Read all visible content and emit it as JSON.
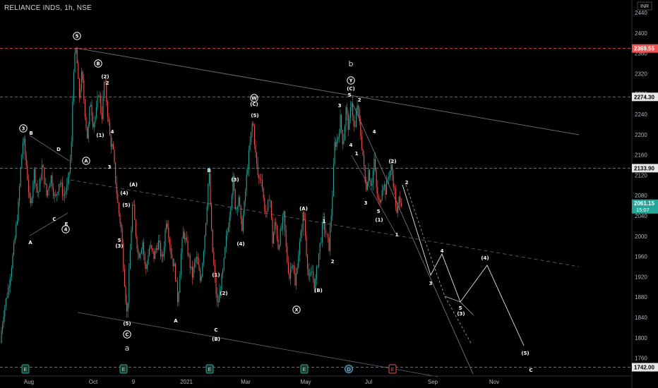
{
  "header": {
    "title": "RELIANCE INDS, 1h, NSE"
  },
  "currency": "INR",
  "colors": {
    "background": "#000000",
    "bull": "#26a69a",
    "bear": "#ef5350",
    "grid_text": "#d1d4dc",
    "current_price_bg": "#26a69a",
    "hline_red": "#ef5350",
    "hline_gray": "#787b86",
    "trendline": "#787b86"
  },
  "chart_data": {
    "type": "candlestick",
    "title": "RELIANCE INDS, 1h, NSE",
    "ylim": [
      1730,
      2450
    ],
    "y_ticks": [
      2440,
      2400,
      2360,
      2320,
      2280,
      2240,
      2200,
      2160,
      2120,
      2080,
      2040,
      2000,
      1960,
      1920,
      1880,
      1840,
      1800,
      1760
    ],
    "x_ticks": [
      "Aug",
      "Oct",
      "9",
      "2021",
      "Mar",
      "May",
      "Jul",
      "Sep",
      "Nov"
    ],
    "price_labels": [
      {
        "value": "2369.55",
        "price": 2369.55,
        "style": "red"
      },
      {
        "value": "2274.30",
        "price": 2274.3,
        "style": "gray"
      },
      {
        "value": "2133.90",
        "price": 2133.9,
        "style": "gray"
      },
      {
        "value": "1742.00",
        "price": 1742.0,
        "style": "gray"
      }
    ],
    "current_price": {
      "value": "2061.15",
      "countdown": "15:07",
      "price": 2061.15
    },
    "price_path": [
      [
        0,
        1790
      ],
      [
        5,
        1850
      ],
      [
        12,
        1900
      ],
      [
        20,
        1980
      ],
      [
        26,
        2060
      ],
      [
        30,
        2150
      ],
      [
        33,
        2195
      ],
      [
        38,
        2130
      ],
      [
        43,
        2050
      ],
      [
        48,
        2130
      ],
      [
        54,
        2080
      ],
      [
        60,
        2140
      ],
      [
        66,
        2080
      ],
      [
        72,
        2120
      ],
      [
        78,
        2070
      ],
      [
        84,
        2110
      ],
      [
        90,
        2080
      ],
      [
        96,
        2100
      ],
      [
        101,
        2170
      ],
      [
        104,
        2330
      ],
      [
        108,
        2369
      ],
      [
        112,
        2270
      ],
      [
        116,
        2320
      ],
      [
        120,
        2250
      ],
      [
        124,
        2190
      ],
      [
        128,
        2270
      ],
      [
        132,
        2220
      ],
      [
        136,
        2240
      ],
      [
        140,
        2290
      ],
      [
        144,
        2230
      ],
      [
        148,
        2310
      ],
      [
        152,
        2250
      ],
      [
        156,
        2190
      ],
      [
        160,
        2170
      ],
      [
        163,
        2120
      ],
      [
        167,
        2060
      ],
      [
        172,
        2010
      ],
      [
        176,
        1920
      ],
      [
        180,
        1840
      ],
      [
        184,
        1960
      ],
      [
        188,
        2070
      ],
      [
        192,
        2010
      ],
      [
        196,
        1960
      ],
      [
        202,
        1990
      ],
      [
        206,
        1930
      ],
      [
        212,
        1980
      ],
      [
        218,
        1960
      ],
      [
        224,
        1990
      ],
      [
        230,
        1950
      ],
      [
        236,
        2040
      ],
      [
        242,
        1970
      ],
      [
        248,
        1930
      ],
      [
        252,
        1870
      ],
      [
        256,
        1960
      ],
      [
        260,
        2010
      ],
      [
        266,
        1970
      ],
      [
        272,
        1920
      ],
      [
        278,
        1960
      ],
      [
        284,
        1910
      ],
      [
        288,
        1970
      ],
      [
        292,
        2040
      ],
      [
        296,
        2130
      ],
      [
        300,
        1990
      ],
      [
        304,
        1920
      ],
      [
        308,
        1860
      ],
      [
        312,
        1900
      ],
      [
        316,
        1930
      ],
      [
        320,
        1990
      ],
      [
        324,
        2030
      ],
      [
        330,
        2110
      ],
      [
        334,
        2050
      ],
      [
        338,
        2080
      ],
      [
        342,
        2010
      ],
      [
        346,
        2060
      ],
      [
        350,
        2130
      ],
      [
        354,
        2180
      ],
      [
        358,
        2230
      ],
      [
        362,
        2160
      ],
      [
        366,
        2110
      ],
      [
        370,
        2120
      ],
      [
        374,
        2060
      ],
      [
        378,
        2040
      ],
      [
        382,
        2090
      ],
      [
        386,
        1990
      ],
      [
        390,
        2030
      ],
      [
        394,
        1980
      ],
      [
        398,
        2010
      ],
      [
        402,
        2040
      ],
      [
        406,
        1960
      ],
      [
        410,
        1920
      ],
      [
        414,
        1960
      ],
      [
        418,
        1900
      ],
      [
        422,
        1960
      ],
      [
        426,
        2000
      ],
      [
        430,
        2050
      ],
      [
        434,
        1970
      ],
      [
        438,
        1910
      ],
      [
        442,
        1930
      ],
      [
        446,
        1900
      ],
      [
        450,
        1950
      ],
      [
        454,
        1990
      ],
      [
        458,
        2030
      ],
      [
        462,
        2000
      ],
      [
        466,
        1980
      ],
      [
        470,
        2060
      ],
      [
        474,
        2180
      ],
      [
        478,
        2190
      ],
      [
        482,
        2230
      ],
      [
        486,
        2180
      ],
      [
        490,
        2250
      ],
      [
        494,
        2210
      ],
      [
        498,
        2270
      ],
      [
        502,
        2200
      ],
      [
        506,
        2260
      ],
      [
        510,
        2210
      ],
      [
        514,
        2160
      ],
      [
        518,
        2090
      ],
      [
        522,
        2130
      ],
      [
        526,
        2100
      ],
      [
        530,
        2150
      ],
      [
        534,
        2080
      ],
      [
        538,
        2060
      ],
      [
        542,
        2110
      ],
      [
        546,
        2090
      ],
      [
        550,
        2120
      ],
      [
        554,
        2135
      ],
      [
        558,
        2100
      ],
      [
        562,
        2040
      ],
      [
        566,
        2080
      ],
      [
        570,
        2061
      ]
    ],
    "price_axis": {
      "x_left": 895,
      "top_price": 2440,
      "top_y": 18,
      "per40": 28.8
    },
    "x_axis_labels_y": 541
  },
  "wave_labels": [
    {
      "text": "5",
      "x": 109,
      "y": 51,
      "circled": true
    },
    {
      "text": "B",
      "x": 139,
      "y": 90,
      "circled": true
    },
    {
      "text": "(2)",
      "x": 149,
      "y": 108,
      "circled": false
    },
    {
      "text": "2",
      "x": 152,
      "y": 117,
      "circled": false
    },
    {
      "text": "3",
      "x": 33,
      "y": 182,
      "circled": true
    },
    {
      "text": "B",
      "x": 44,
      "y": 188,
      "circled": false
    },
    {
      "text": "D",
      "x": 83,
      "y": 211,
      "circled": false
    },
    {
      "text": "A",
      "x": 122,
      "y": 228,
      "circled": true
    },
    {
      "text": "(1)",
      "x": 142,
      "y": 191,
      "circled": false
    },
    {
      "text": "4",
      "x": 159,
      "y": 186,
      "circled": false
    },
    {
      "text": "3",
      "x": 155,
      "y": 236,
      "circled": false
    },
    {
      "text": "(4)",
      "x": 176,
      "y": 273,
      "circled": false
    },
    {
      "text": "(A)",
      "x": 189,
      "y": 261,
      "circled": false
    },
    {
      "text": "(5)",
      "x": 179,
      "y": 290,
      "circled": false
    },
    {
      "text": "A",
      "x": 43,
      "y": 343,
      "circled": false
    },
    {
      "text": "C",
      "x": 77,
      "y": 310,
      "circled": false
    },
    {
      "text": "E",
      "x": 94,
      "y": 317,
      "circled": false
    },
    {
      "text": "4",
      "x": 93,
      "y": 325,
      "circled": true
    },
    {
      "text": "5",
      "x": 169,
      "y": 340,
      "circled": false
    },
    {
      "text": "(3)",
      "x": 169,
      "y": 348,
      "circled": false
    },
    {
      "text": "(5)",
      "x": 180,
      "y": 458,
      "circled": false
    },
    {
      "text": "C",
      "x": 180,
      "y": 474,
      "circled": true
    },
    {
      "text": "a",
      "x": 180,
      "y": 494,
      "circled": false
    },
    {
      "text": "A",
      "x": 249,
      "y": 454,
      "circled": false
    },
    {
      "text": "B",
      "x": 296,
      "y": 241,
      "circled": false
    },
    {
      "text": "(1)",
      "x": 306,
      "y": 389,
      "circled": false
    },
    {
      "text": "(2)",
      "x": 317,
      "y": 415,
      "circled": false
    },
    {
      "text": "C",
      "x": 306,
      "y": 467,
      "circled": false
    },
    {
      "text": "(B)",
      "x": 306,
      "y": 480,
      "circled": false
    },
    {
      "text": "(3)",
      "x": 333,
      "y": 254,
      "circled": false
    },
    {
      "text": "(4)",
      "x": 341,
      "y": 345,
      "circled": false
    },
    {
      "text": "W",
      "x": 360,
      "y": 139,
      "circled": true
    },
    {
      "text": "(C)",
      "x": 360,
      "y": 147,
      "circled": false
    },
    {
      "text": "(5)",
      "x": 361,
      "y": 163,
      "circled": false
    },
    {
      "text": "(A)",
      "x": 430,
      "y": 295,
      "circled": false
    },
    {
      "text": "1",
      "x": 459,
      "y": 313,
      "circled": false
    },
    {
      "text": "2",
      "x": 471,
      "y": 370,
      "circled": false
    },
    {
      "text": "(B)",
      "x": 451,
      "y": 411,
      "circled": false
    },
    {
      "text": "X",
      "x": 420,
      "y": 439,
      "circled": true
    },
    {
      "text": "b",
      "x": 497,
      "y": 91,
      "circled": false
    },
    {
      "text": "Y",
      "x": 497,
      "y": 114,
      "circled": true
    },
    {
      "text": "(C)",
      "x": 497,
      "y": 125,
      "circled": false
    },
    {
      "text": "5",
      "x": 495,
      "y": 134,
      "circled": false
    },
    {
      "text": "2",
      "x": 509,
      "y": 141,
      "circled": false
    },
    {
      "text": "3",
      "x": 481,
      "y": 149,
      "circled": false
    },
    {
      "text": "4",
      "x": 497,
      "y": 205,
      "circled": false
    },
    {
      "text": "1",
      "x": 505,
      "y": 217,
      "circled": false
    },
    {
      "text": "4",
      "x": 530,
      "y": 186,
      "circled": false
    },
    {
      "text": "(2)",
      "x": 556,
      "y": 228,
      "circled": false
    },
    {
      "text": "2",
      "x": 576,
      "y": 258,
      "circled": false
    },
    {
      "text": "3",
      "x": 518,
      "y": 287,
      "circled": false
    },
    {
      "text": "5",
      "x": 536,
      "y": 299,
      "circled": false
    },
    {
      "text": "(1)",
      "x": 537,
      "y": 311,
      "circled": false
    },
    {
      "text": "1",
      "x": 562,
      "y": 332,
      "circled": false
    },
    {
      "text": "4",
      "x": 626,
      "y": 355,
      "circled": false
    },
    {
      "text": "3",
      "x": 610,
      "y": 401,
      "circled": false
    },
    {
      "text": "5",
      "x": 652,
      "y": 436,
      "circled": false
    },
    {
      "text": "(3)",
      "x": 653,
      "y": 444,
      "circled": false
    },
    {
      "text": "(4)",
      "x": 687,
      "y": 365,
      "circled": false
    },
    {
      "text": "(5)",
      "x": 744,
      "y": 500,
      "circled": false
    },
    {
      "text": "C",
      "x": 752,
      "y": 524,
      "circled": false
    }
  ],
  "event_markers": [
    {
      "text": "E",
      "x": 36,
      "kind": "earnings"
    },
    {
      "text": "E",
      "x": 175,
      "kind": "earnings"
    },
    {
      "text": "E",
      "x": 297,
      "kind": "earnings"
    },
    {
      "text": "E",
      "x": 431,
      "kind": "earnings"
    },
    {
      "text": "D",
      "x": 494,
      "kind": "dividend"
    },
    {
      "text": "E",
      "x": 556,
      "kind": "earnings-upcoming"
    }
  ]
}
